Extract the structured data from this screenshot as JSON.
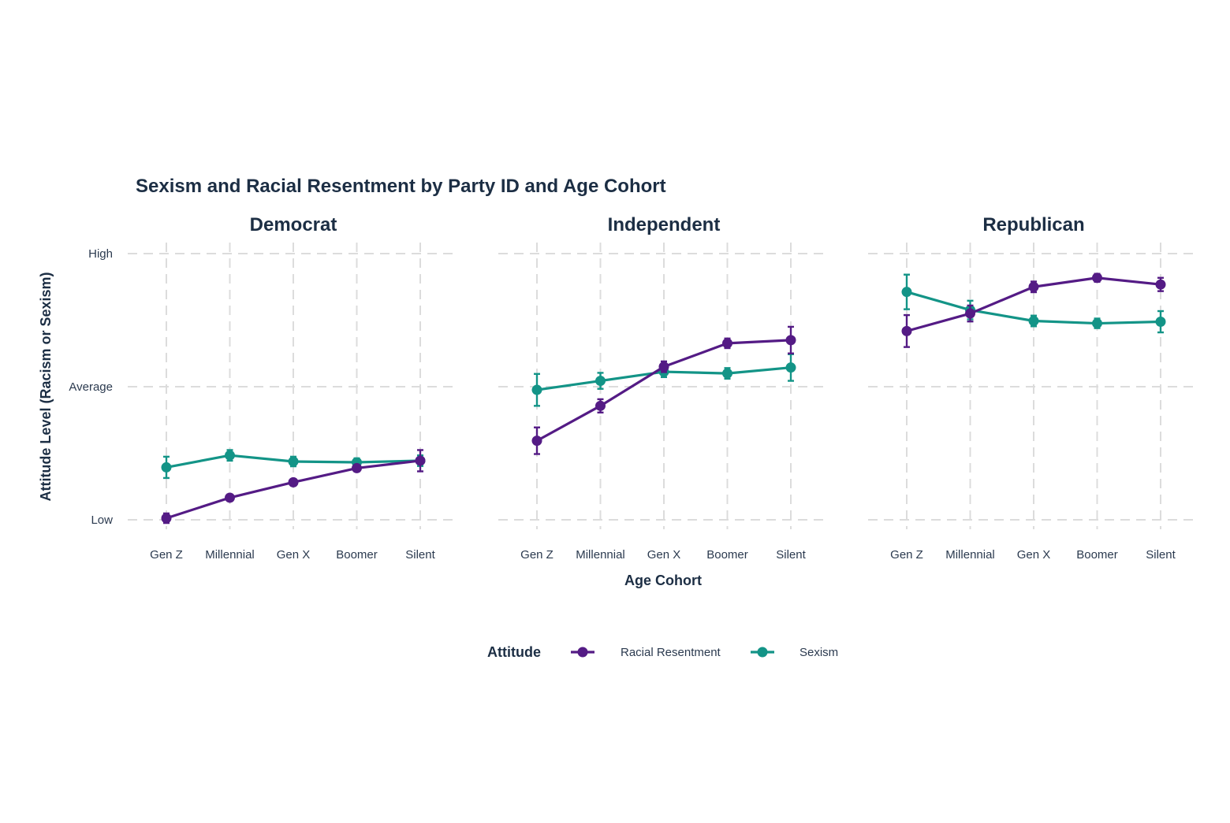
{
  "chart_data": {
    "type": "line",
    "title": "Sexism and Racial Resentment by Party ID and Age Cohort",
    "xlabel": "Age Cohort",
    "ylabel": "Attitude Level (Racism or Sexism)",
    "categories": [
      "Gen Z",
      "Millennial",
      "Gen X",
      "Boomer",
      "Silent"
    ],
    "y_ticks": [
      {
        "label": "Low",
        "value": 0
      },
      {
        "label": "Average",
        "value": 0.5
      },
      {
        "label": "High",
        "value": 1
      }
    ],
    "ylim": [
      -0.06,
      1.04
    ],
    "grid": true,
    "legend": {
      "title": "Attitude",
      "position": "bottom",
      "entries": [
        "Racial Resentment",
        "Sexism"
      ]
    },
    "series_colors": {
      "Racial Resentment": "#541B85",
      "Sexism": "#139487"
    },
    "panels": [
      {
        "name": "Democrat",
        "series": [
          {
            "name": "Racial Resentment",
            "values": [
              0.006,
              0.083,
              0.141,
              0.194,
              0.222
            ],
            "err": [
              0.018,
              0.012,
              0.012,
              0.012,
              0.04
            ]
          },
          {
            "name": "Sexism",
            "values": [
              0.197,
              0.242,
              0.219,
              0.216,
              0.222
            ],
            "err": [
              0.04,
              0.02,
              0.018,
              0.015,
              0.02
            ]
          }
        ]
      },
      {
        "name": "Independent",
        "series": [
          {
            "name": "Racial Resentment",
            "values": [
              0.297,
              0.428,
              0.575,
              0.663,
              0.675
            ],
            "err": [
              0.05,
              0.025,
              0.02,
              0.018,
              0.05
            ]
          },
          {
            "name": "Sexism",
            "values": [
              0.488,
              0.522,
              0.556,
              0.55,
              0.572
            ],
            "err": [
              0.06,
              0.03,
              0.02,
              0.02,
              0.05
            ]
          }
        ]
      },
      {
        "name": "Republican",
        "series": [
          {
            "name": "Racial Resentment",
            "values": [
              0.709,
              0.775,
              0.875,
              0.909,
              0.884
            ],
            "err": [
              0.06,
              0.03,
              0.02,
              0.015,
              0.025
            ]
          },
          {
            "name": "Sexism",
            "values": [
              0.856,
              0.788,
              0.747,
              0.738,
              0.744
            ],
            "err": [
              0.065,
              0.035,
              0.02,
              0.018,
              0.04
            ]
          }
        ]
      }
    ]
  }
}
